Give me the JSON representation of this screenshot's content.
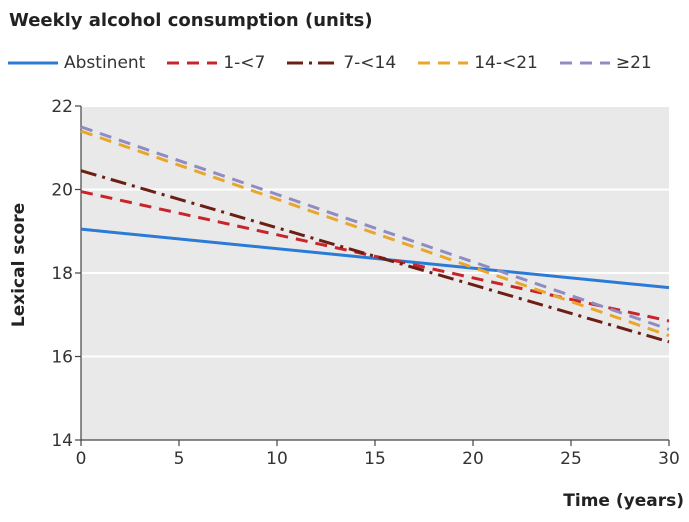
{
  "chart_data": {
    "type": "line",
    "legend_title": "Weekly alcohol consumption (units)",
    "legend_position": "top",
    "xlabel": "Time (years)",
    "ylabel": "Lexical score",
    "xlim": [
      0,
      30
    ],
    "ylim": [
      14,
      22
    ],
    "x_ticks": [
      0,
      5,
      10,
      15,
      20,
      25,
      30
    ],
    "y_ticks": [
      14,
      16,
      18,
      20,
      22
    ],
    "grid": "horizontal",
    "series": [
      {
        "name": "Abstinent",
        "color": "#2b7bd6",
        "dash": "solid",
        "x": [
          0,
          30
        ],
        "y": [
          19.05,
          17.65
        ]
      },
      {
        "name": "1-<7",
        "color": "#c8252b",
        "dash": "dash",
        "x": [
          0,
          30
        ],
        "y": [
          19.95,
          16.85
        ]
      },
      {
        "name": "7-<14",
        "color": "#6b1f14",
        "dash": "dashdot",
        "x": [
          0,
          30
        ],
        "y": [
          20.45,
          16.35
        ]
      },
      {
        "name": "14-<21",
        "color": "#e8a72a",
        "dash": "dash",
        "x": [
          0,
          30
        ],
        "y": [
          21.4,
          16.5
        ]
      },
      {
        "name": "≥21",
        "color": "#8f8cc4",
        "dash": "dash",
        "x": [
          0,
          30
        ],
        "y": [
          21.5,
          16.65
        ]
      }
    ]
  }
}
